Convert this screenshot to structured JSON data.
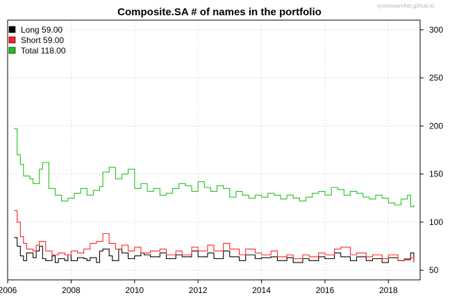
{
  "chart_data": {
    "type": "line",
    "line_style": "step",
    "title": "Composite.SA # of names in the portfolio",
    "watermark": "sysresearcher.github.io",
    "xlabel": "",
    "ylabel": "",
    "xlim": [
      2006.0,
      2019.0
    ],
    "ylim": [
      40,
      310
    ],
    "x_ticks": [
      2006,
      2008,
      2010,
      2012,
      2014,
      2016,
      2018
    ],
    "x_tick_labels": [
      "2006",
      "2008",
      "2010",
      "2012",
      "2014",
      "2016",
      "2018"
    ],
    "y_ticks": [
      50,
      100,
      150,
      200,
      250,
      300
    ],
    "y_tick_labels": [
      "50",
      "100",
      "150",
      "200",
      "250",
      "300"
    ],
    "y_axis_side": "right",
    "grid": "dotted",
    "legend_position": "top-left",
    "series": [
      {
        "name": "Long",
        "legend_label": "Long  59.00",
        "color": "#000000",
        "x": [
          2006.2,
          2006.3,
          2006.4,
          2006.5,
          2006.6,
          2006.8,
          2006.9,
          2007.0,
          2007.1,
          2007.2,
          2007.4,
          2007.5,
          2007.6,
          2007.8,
          2007.9,
          2008.0,
          2008.2,
          2008.4,
          2008.5,
          2008.6,
          2008.8,
          2008.9,
          2009.0,
          2009.2,
          2009.3,
          2009.5,
          2009.6,
          2009.8,
          2010.0,
          2010.2,
          2010.3,
          2010.5,
          2010.8,
          2011.0,
          2011.3,
          2011.5,
          2011.8,
          2012.0,
          2012.3,
          2012.5,
          2012.8,
          2013.0,
          2013.3,
          2013.5,
          2013.8,
          2014.0,
          2014.3,
          2014.5,
          2014.8,
          2015.0,
          2015.3,
          2015.5,
          2015.8,
          2016.0,
          2016.3,
          2016.5,
          2016.8,
          2017.0,
          2017.3,
          2017.5,
          2017.8,
          2018.0,
          2018.3,
          2018.5,
          2018.7,
          2018.8
        ],
        "values": [
          84,
          75,
          65,
          60,
          68,
          63,
          70,
          75,
          62,
          60,
          65,
          58,
          62,
          60,
          66,
          60,
          63,
          62,
          60,
          63,
          58,
          70,
          72,
          65,
          60,
          72,
          68,
          62,
          65,
          68,
          66,
          64,
          68,
          62,
          66,
          64,
          70,
          64,
          68,
          62,
          70,
          64,
          60,
          66,
          62,
          63,
          64,
          60,
          63,
          58,
          62,
          60,
          64,
          62,
          68,
          64,
          60,
          64,
          60,
          62,
          58,
          63,
          60,
          61,
          68,
          59
        ]
      },
      {
        "name": "Short",
        "legend_label": "Short  59.00",
        "color": "#ff2020",
        "x": [
          2006.2,
          2006.3,
          2006.4,
          2006.5,
          2006.6,
          2006.8,
          2006.9,
          2007.0,
          2007.2,
          2007.4,
          2007.6,
          2007.8,
          2008.0,
          2008.2,
          2008.4,
          2008.6,
          2008.8,
          2009.0,
          2009.2,
          2009.4,
          2009.6,
          2009.8,
          2010.0,
          2010.2,
          2010.5,
          2010.8,
          2011.0,
          2011.3,
          2011.5,
          2011.8,
          2012.0,
          2012.3,
          2012.5,
          2012.8,
          2013.0,
          2013.3,
          2013.5,
          2013.8,
          2014.0,
          2014.3,
          2014.5,
          2014.8,
          2015.0,
          2015.3,
          2015.5,
          2015.8,
          2016.0,
          2016.3,
          2016.5,
          2016.8,
          2017.0,
          2017.3,
          2017.5,
          2017.8,
          2018.0,
          2018.3,
          2018.5,
          2018.7,
          2018.8
        ],
        "values": [
          112,
          100,
          85,
          78,
          72,
          70,
          76,
          80,
          70,
          66,
          68,
          66,
          70,
          68,
          72,
          78,
          80,
          88,
          78,
          72,
          76,
          70,
          74,
          68,
          70,
          72,
          66,
          70,
          66,
          74,
          70,
          76,
          70,
          78,
          72,
          66,
          72,
          68,
          66,
          70,
          64,
          66,
          62,
          66,
          64,
          68,
          66,
          72,
          74,
          66,
          68,
          64,
          66,
          62,
          66,
          60,
          62,
          63,
          58
        ]
      },
      {
        "name": "Total",
        "legend_label": "Total 118.00",
        "color": "#20c020",
        "x": [
          2006.2,
          2006.3,
          2006.4,
          2006.5,
          2006.7,
          2006.8,
          2007.0,
          2007.1,
          2007.3,
          2007.5,
          2007.7,
          2007.9,
          2008.1,
          2008.3,
          2008.5,
          2008.7,
          2008.9,
          2009.0,
          2009.2,
          2009.4,
          2009.6,
          2009.8,
          2010.0,
          2010.2,
          2010.4,
          2010.6,
          2010.8,
          2011.0,
          2011.2,
          2011.4,
          2011.6,
          2011.8,
          2012.0,
          2012.2,
          2012.4,
          2012.6,
          2012.8,
          2013.0,
          2013.2,
          2013.4,
          2013.6,
          2013.8,
          2014.0,
          2014.2,
          2014.4,
          2014.6,
          2014.8,
          2015.0,
          2015.2,
          2015.4,
          2015.6,
          2015.8,
          2016.0,
          2016.2,
          2016.4,
          2016.6,
          2016.8,
          2017.0,
          2017.2,
          2017.4,
          2017.6,
          2017.8,
          2018.0,
          2018.2,
          2018.4,
          2018.6,
          2018.7,
          2018.8
        ],
        "values": [
          197,
          170,
          160,
          148,
          145,
          140,
          155,
          162,
          135,
          128,
          122,
          125,
          130,
          135,
          128,
          133,
          137,
          152,
          157,
          145,
          150,
          155,
          135,
          140,
          132,
          135,
          128,
          130,
          135,
          140,
          138,
          132,
          142,
          136,
          132,
          138,
          135,
          126,
          132,
          128,
          125,
          128,
          126,
          130,
          128,
          124,
          128,
          125,
          122,
          126,
          130,
          132,
          128,
          136,
          134,
          128,
          132,
          130,
          126,
          124,
          128,
          125,
          120,
          118,
          124,
          128,
          116,
          118
        ]
      }
    ]
  }
}
